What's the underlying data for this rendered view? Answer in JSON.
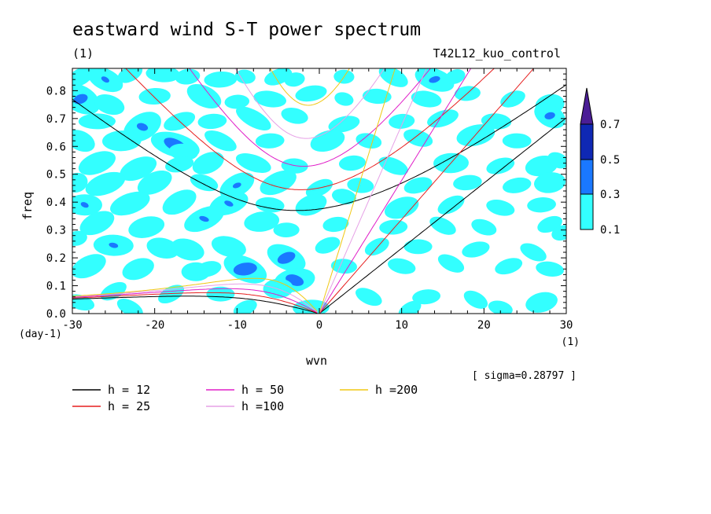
{
  "chart_data": {
    "type": "contour",
    "title": "eastward wind S-T power spectrum",
    "subtitle_left": "(1)",
    "subtitle_right": "T42L12_kuo_control",
    "xlabel": "wvn",
    "ylabel": "freq",
    "x_unit_label": "(1)",
    "y_unit_label": "(day-1)",
    "xlim": [
      -30,
      30
    ],
    "ylim": [
      0,
      0.88
    ],
    "x_ticks": [
      -30,
      -20,
      -10,
      0,
      10,
      20,
      30
    ],
    "x_tick_labels": [
      "-30",
      "-20",
      "-10",
      "0",
      "10",
      "20",
      "30"
    ],
    "y_ticks": [
      0,
      0.1,
      0.2,
      0.3,
      0.4,
      0.5,
      0.6,
      0.7,
      0.8
    ],
    "y_tick_labels": [
      "0.0",
      "0.1",
      "0.2",
      "0.3",
      "0.4",
      "0.5",
      "0.6",
      "0.7",
      "0.8"
    ],
    "sigma_note": "[ sigma=0.28797 ]",
    "colorbar": {
      "levels": [
        0.1,
        0.3,
        0.5,
        0.7
      ],
      "level_labels": [
        "0.1",
        "0.3",
        "0.5",
        "0.7"
      ],
      "colors": [
        "#33ffff",
        "#1a78ff",
        "#0f28b4",
        "#4b1e96"
      ]
    },
    "dispersion_legend": [
      {
        "label": "h = 12",
        "h": 12,
        "color": "#000000"
      },
      {
        "label": "h = 25",
        "h": 25,
        "color": "#e61e1e"
      },
      {
        "label": "h = 50",
        "h": 50,
        "color": "#e01ec8"
      },
      {
        "label": "h =100",
        "h": 100,
        "color": "#e6a0e6"
      },
      {
        "label": "h =200",
        "h": 200,
        "color": "#f0c814"
      }
    ],
    "field": {
      "description_levels": [
        0.1,
        0.3
      ],
      "blobs": [
        [
          -29,
          0.85,
          1.2,
          0.02,
          0.3
        ],
        [
          -26,
          0.84,
          1.5,
          0.025,
          0.32
        ],
        [
          -23,
          0.86,
          1.2,
          0.02,
          0.25
        ],
        [
          -19,
          0.86,
          1.4,
          0.02,
          0.3
        ],
        [
          -16,
          0.85,
          1.1,
          0.02,
          0.26
        ],
        [
          -12,
          0.84,
          1.4,
          0.02,
          0.28
        ],
        [
          -9,
          0.85,
          1.0,
          0.02,
          0.22
        ],
        [
          -5,
          0.85,
          1.3,
          0.02,
          0.25
        ],
        [
          -3,
          0.84,
          1.0,
          0.02,
          0.22
        ],
        [
          3,
          0.85,
          1.0,
          0.02,
          0.22
        ],
        [
          9,
          0.85,
          1.3,
          0.02,
          0.3
        ],
        [
          14,
          0.84,
          1.6,
          0.025,
          0.33
        ],
        [
          16.5,
          0.85,
          1.0,
          0.02,
          0.22
        ],
        [
          -29,
          0.77,
          1.6,
          0.03,
          0.35
        ],
        [
          -25.5,
          0.75,
          1.4,
          0.025,
          0.25
        ],
        [
          -20,
          0.78,
          1.3,
          0.02,
          0.3
        ],
        [
          -14,
          0.78,
          1.5,
          0.025,
          0.3
        ],
        [
          -10,
          0.76,
          1.2,
          0.02,
          0.22
        ],
        [
          -6,
          0.77,
          1.4,
          0.02,
          0.28
        ],
        [
          -1,
          0.79,
          1.4,
          0.02,
          0.26
        ],
        [
          3,
          0.77,
          1.0,
          0.02,
          0.2
        ],
        [
          7,
          0.78,
          1.3,
          0.02,
          0.25
        ],
        [
          13,
          0.77,
          1.3,
          0.02,
          0.28
        ],
        [
          18,
          0.79,
          1.2,
          0.02,
          0.24
        ],
        [
          23.5,
          0.77,
          1.2,
          0.02,
          0.24
        ],
        [
          28,
          0.75,
          1.2,
          0.025,
          0.3
        ],
        [
          -27,
          0.69,
          1.6,
          0.02,
          0.27
        ],
        [
          -21.5,
          0.67,
          1.6,
          0.03,
          0.33
        ],
        [
          -17,
          0.69,
          1.4,
          0.02,
          0.28
        ],
        [
          -13,
          0.69,
          1.3,
          0.02,
          0.25
        ],
        [
          -8,
          0.7,
          1.6,
          0.02,
          0.3
        ],
        [
          -3,
          0.71,
          1.2,
          0.02,
          0.26
        ],
        [
          3,
          0.68,
          1.4,
          0.02,
          0.26
        ],
        [
          10,
          0.69,
          1.2,
          0.02,
          0.24
        ],
        [
          15,
          0.7,
          1.4,
          0.02,
          0.27
        ],
        [
          21.5,
          0.69,
          1.3,
          0.02,
          0.27
        ],
        [
          28,
          0.71,
          1.3,
          0.025,
          0.34
        ],
        [
          -29,
          0.62,
          1.3,
          0.025,
          0.27
        ],
        [
          -24,
          0.62,
          1.6,
          0.025,
          0.3
        ],
        [
          -17.5,
          0.605,
          1.8,
          0.025,
          0.42
        ],
        [
          -16.5,
          0.58,
          1.2,
          0.02,
          0.3
        ],
        [
          -12,
          0.62,
          1.5,
          0.02,
          0.27
        ],
        [
          -6,
          0.62,
          1.3,
          0.02,
          0.25
        ],
        [
          1,
          0.62,
          1.5,
          0.025,
          0.28
        ],
        [
          6,
          0.62,
          1.2,
          0.02,
          0.24
        ],
        [
          12,
          0.63,
          1.3,
          0.02,
          0.27
        ],
        [
          19,
          0.64,
          1.6,
          0.025,
          0.3
        ],
        [
          24,
          0.62,
          1.3,
          0.02,
          0.25
        ],
        [
          -27,
          0.54,
          1.6,
          0.025,
          0.3
        ],
        [
          -22,
          0.52,
          1.6,
          0.025,
          0.3
        ],
        [
          -17,
          0.535,
          1.3,
          0.02,
          0.25
        ],
        [
          -13.5,
          0.54,
          1.4,
          0.025,
          0.28
        ],
        [
          -8,
          0.54,
          1.5,
          0.02,
          0.3
        ],
        [
          -3,
          0.53,
          1.2,
          0.02,
          0.25
        ],
        [
          4,
          0.54,
          1.2,
          0.02,
          0.25
        ],
        [
          9,
          0.53,
          1.4,
          0.02,
          0.25
        ],
        [
          16,
          0.54,
          1.5,
          0.025,
          0.28
        ],
        [
          22,
          0.53,
          1.3,
          0.02,
          0.25
        ],
        [
          27,
          0.53,
          1.4,
          0.025,
          0.28
        ],
        [
          -29.5,
          0.47,
          1.0,
          0.025,
          0.26
        ],
        [
          -26,
          0.465,
          1.7,
          0.025,
          0.3
        ],
        [
          -20,
          0.47,
          1.5,
          0.025,
          0.3
        ],
        [
          -14,
          0.47,
          1.3,
          0.02,
          0.25
        ],
        [
          -10,
          0.46,
          1.5,
          0.025,
          0.32
        ],
        [
          -5,
          0.47,
          1.6,
          0.025,
          0.3
        ],
        [
          0,
          0.45,
          1.3,
          0.02,
          0.25
        ],
        [
          5,
          0.46,
          1.2,
          0.02,
          0.25
        ],
        [
          12,
          0.46,
          1.3,
          0.02,
          0.25
        ],
        [
          18,
          0.47,
          1.3,
          0.02,
          0.25
        ],
        [
          24,
          0.46,
          1.3,
          0.02,
          0.25
        ],
        [
          28,
          0.47,
          1.3,
          0.025,
          0.3
        ],
        [
          -28.5,
          0.39,
          1.4,
          0.025,
          0.32
        ],
        [
          -23,
          0.395,
          1.7,
          0.025,
          0.3
        ],
        [
          -17,
          0.4,
          1.5,
          0.025,
          0.3
        ],
        [
          -11,
          0.395,
          1.6,
          0.025,
          0.32
        ],
        [
          -6,
          0.39,
          1.3,
          0.02,
          0.25
        ],
        [
          -1,
          0.39,
          1.4,
          0.025,
          0.27
        ],
        [
          3,
          0.42,
          1.1,
          0.02,
          0.25
        ],
        [
          10,
          0.38,
          1.5,
          0.025,
          0.28
        ],
        [
          16,
          0.39,
          1.3,
          0.02,
          0.25
        ],
        [
          22,
          0.38,
          1.3,
          0.02,
          0.25
        ],
        [
          27,
          0.39,
          1.3,
          0.02,
          0.25
        ],
        [
          -27,
          0.325,
          1.5,
          0.025,
          0.3
        ],
        [
          -21,
          0.31,
          1.5,
          0.025,
          0.3
        ],
        [
          -14,
          0.34,
          1.7,
          0.025,
          0.32
        ],
        [
          -7,
          0.33,
          1.5,
          0.025,
          0.28
        ],
        [
          -4,
          0.3,
          1.2,
          0.02,
          0.24
        ],
        [
          2,
          0.32,
          1.2,
          0.02,
          0.24
        ],
        [
          9,
          0.31,
          1.3,
          0.02,
          0.24
        ],
        [
          15,
          0.315,
          1.3,
          0.02,
          0.24
        ],
        [
          20,
          0.31,
          1.2,
          0.02,
          0.24
        ],
        [
          28,
          0.32,
          1.2,
          0.02,
          0.24
        ],
        [
          -25,
          0.245,
          1.6,
          0.025,
          0.32
        ],
        [
          -19,
          0.235,
          1.4,
          0.025,
          0.28
        ],
        [
          -16,
          0.23,
          1.4,
          0.025,
          0.3
        ],
        [
          -11,
          0.24,
          1.5,
          0.025,
          0.28
        ],
        [
          -4,
          0.2,
          1.5,
          0.025,
          0.4
        ],
        [
          1,
          0.245,
          1.2,
          0.02,
          0.24
        ],
        [
          7,
          0.24,
          1.2,
          0.02,
          0.24
        ],
        [
          12,
          0.24,
          1.3,
          0.02,
          0.24
        ],
        [
          19,
          0.23,
          1.3,
          0.02,
          0.24
        ],
        [
          26,
          0.22,
          1.3,
          0.02,
          0.24
        ],
        [
          -28,
          0.17,
          1.5,
          0.025,
          0.3
        ],
        [
          -22,
          0.16,
          1.4,
          0.025,
          0.28
        ],
        [
          -15,
          0.15,
          1.3,
          0.025,
          0.25
        ],
        [
          -9,
          0.16,
          1.6,
          0.025,
          0.45
        ],
        [
          -3,
          0.12,
          1.5,
          0.025,
          0.4
        ],
        [
          3,
          0.17,
          1.2,
          0.02,
          0.24
        ],
        [
          10,
          0.17,
          1.3,
          0.02,
          0.24
        ],
        [
          16,
          0.18,
          1.3,
          0.02,
          0.24
        ],
        [
          23,
          0.17,
          1.3,
          0.02,
          0.24
        ],
        [
          28,
          0.16,
          1.3,
          0.02,
          0.24
        ],
        [
          -25,
          0.08,
          1.3,
          0.02,
          0.24
        ],
        [
          -18,
          0.07,
          1.3,
          0.02,
          0.24
        ],
        [
          -12,
          0.07,
          1.3,
          0.02,
          0.24
        ],
        [
          -5,
          0.09,
          1.3,
          0.025,
          0.27
        ],
        [
          -1,
          0.02,
          1.5,
          0.02,
          0.3
        ],
        [
          6,
          0.06,
          1.3,
          0.02,
          0.24
        ],
        [
          13,
          0.06,
          1.3,
          0.02,
          0.24
        ],
        [
          19,
          0.05,
          1.2,
          0.02,
          0.24
        ],
        [
          27,
          0.04,
          1.4,
          0.025,
          0.27
        ],
        [
          -29,
          0.04,
          1.3,
          0.02,
          0.24
        ],
        [
          -23,
          0.02,
          1.3,
          0.02,
          0.24
        ],
        [
          -9,
          0.02,
          1.2,
          0.02,
          0.22
        ],
        [
          11,
          0.015,
          1.2,
          0.02,
          0.22
        ],
        [
          22,
          0.02,
          1.2,
          0.02,
          0.22
        ],
        [
          -29.5,
          0.27,
          1.0,
          0.02,
          0.24
        ],
        [
          29.5,
          0.29,
          1.0,
          0.02,
          0.24
        ],
        [
          29,
          0.55,
          1.0,
          0.02,
          0.24
        ],
        [
          -13.5,
          0.16,
          1.2,
          0.02,
          0.25
        ]
      ]
    }
  }
}
